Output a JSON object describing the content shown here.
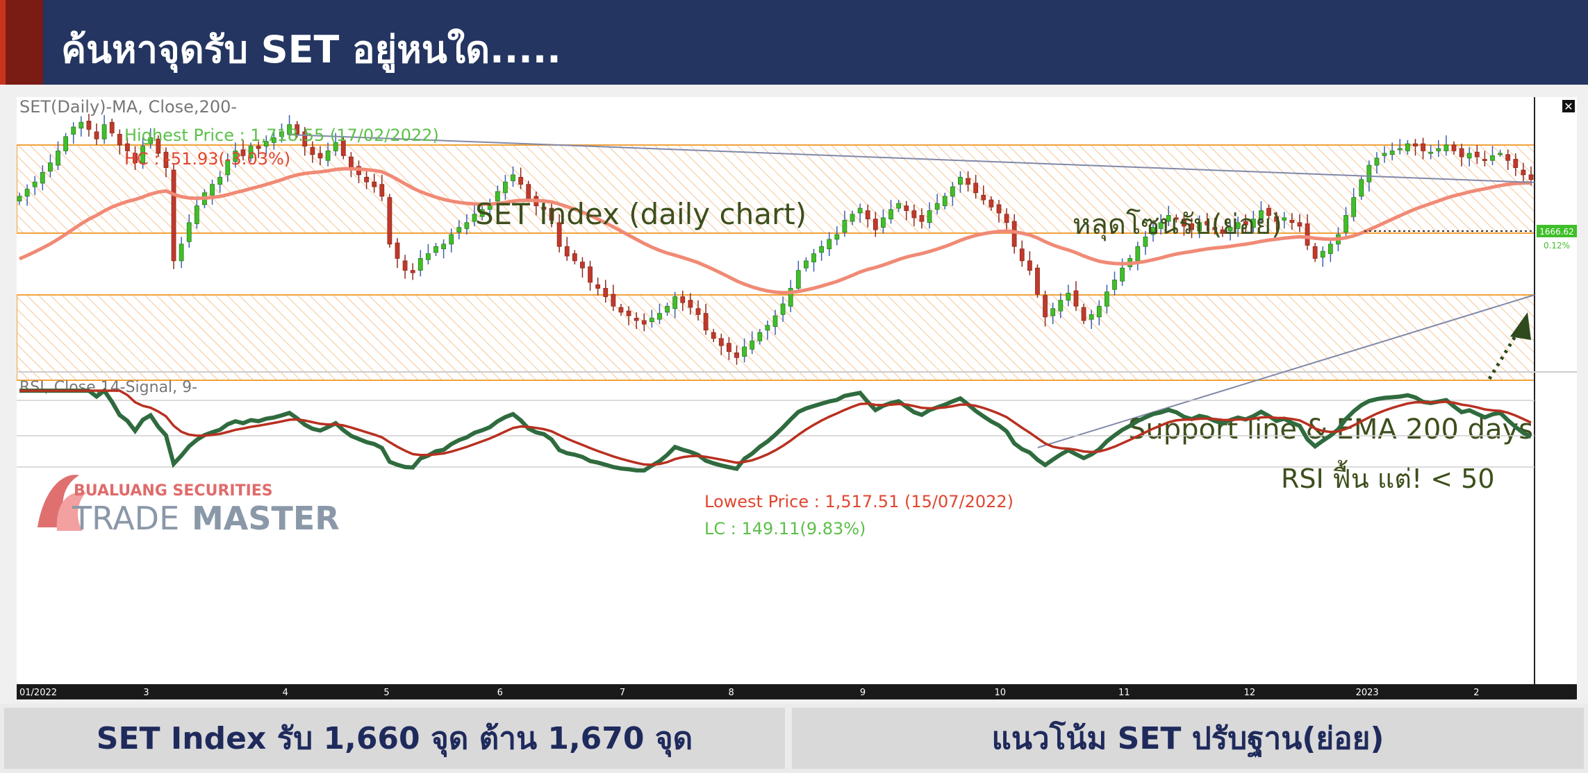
{
  "header": {
    "title": "ค้นหาจุดรับ SET อยู่หนใด....."
  },
  "chart_data": {
    "type": "candlestick",
    "title": "SET(Daily)-MA, Close,200-",
    "rsi_title": "RSI, Close,14-Signal, 9-",
    "x_ticks": [
      "01/2022",
      "3",
      "4",
      "5",
      "6",
      "7",
      "8",
      "9",
      "10",
      "11",
      "12",
      "2023",
      "2"
    ],
    "annotations": {
      "highest": "Highest Price : 1,718.55 (17/02/2022)",
      "hc": "HC : -51.93(-3.03%)",
      "main_label": "SET Index (daily chart)",
      "zone_break": "หลุดโซนรับ(ย่อย)",
      "support": "Support line & EMA 200 days",
      "lowest": "Lowest Price : 1,517.51 (15/07/2022)",
      "lc": "LC : 149.11(9.83%)",
      "rsi_note": "RSI ฟื้น แต่! < 50",
      "last_price": "1666.62",
      "last_change": "0.12%"
    },
    "ylim": [
      1505,
      1735
    ],
    "close": [
      1652,
      1658,
      1664,
      1672,
      1680,
      1690,
      1702,
      1710,
      1714,
      1708,
      1700,
      1712,
      1705,
      1695,
      1690,
      1680,
      1694,
      1701,
      1688,
      1676,
      1598,
      1612,
      1630,
      1644,
      1655,
      1662,
      1668,
      1682,
      1690,
      1686,
      1694,
      1692,
      1698,
      1701,
      1706,
      1712,
      1704,
      1694,
      1687,
      1684,
      1690,
      1697,
      1686,
      1676,
      1670,
      1664,
      1660,
      1652,
      1612,
      1600,
      1590,
      1588,
      1600,
      1604,
      1610,
      1612,
      1620,
      1626,
      1630,
      1637,
      1641,
      1646,
      1656,
      1664,
      1670,
      1662,
      1650,
      1644,
      1641,
      1632,
      1610,
      1602,
      1598,
      1592,
      1580,
      1575,
      1568,
      1560,
      1555,
      1552,
      1548,
      1545,
      1550,
      1554,
      1560,
      1568,
      1563,
      1559,
      1553,
      1540,
      1533,
      1527,
      1522,
      1517,
      1526,
      1531,
      1538,
      1544,
      1552,
      1562,
      1575,
      1590,
      1598,
      1604,
      1610,
      1616,
      1620,
      1632,
      1637,
      1642,
      1633,
      1624,
      1634,
      1641,
      1646,
      1640,
      1634,
      1631,
      1640,
      1646,
      1652,
      1660,
      1668,
      1662,
      1655,
      1649,
      1643,
      1638,
      1630,
      1610,
      1598,
      1590,
      1570,
      1551,
      1558,
      1565,
      1571,
      1560,
      1548,
      1553,
      1560,
      1572,
      1582,
      1592,
      1600,
      1610,
      1618,
      1626,
      1630,
      1636,
      1633,
      1627,
      1624,
      1630,
      1628,
      1624,
      1621,
      1626,
      1630,
      1628,
      1633,
      1640,
      1636,
      1631,
      1634,
      1630,
      1627,
      1611,
      1600,
      1606,
      1612,
      1620,
      1636,
      1651,
      1666,
      1678,
      1684,
      1688,
      1690,
      1692,
      1696,
      1694,
      1690,
      1689,
      1692,
      1695,
      1690,
      1685,
      1688,
      1685,
      1682,
      1686,
      1688,
      1682,
      1676,
      1670,
      1666
    ]
  },
  "footer": {
    "left": "SET Index รับ 1,660 จุด ต้าน 1,670  จุด",
    "right": "แนวโน้ม SET ปรับฐาน(ย่อย)"
  },
  "brand": {
    "securities": "BUALUANG SECURITIES",
    "trade": "TRADE",
    "master": "MASTER"
  },
  "colors": {
    "header_bg": "#233560",
    "up": "#3fbf2a",
    "down": "#c0392b",
    "zone_stroke": "#f0a23a",
    "ema": "#f08a75",
    "rsi": "#2f6b3e",
    "signal": "#b83020",
    "annotation_text": "#3d4f1c"
  }
}
